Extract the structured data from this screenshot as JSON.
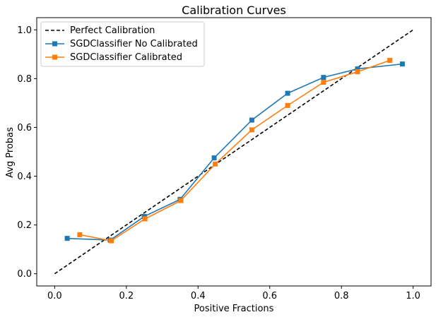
{
  "chart_data": {
    "type": "line",
    "title": "Calibration Curves",
    "xlabel": "Positive Fractions",
    "ylabel": "Avg Probas",
    "xlim": [
      -0.05,
      1.05
    ],
    "ylim": [
      -0.05,
      1.05
    ],
    "xticks": [
      0.0,
      0.2,
      0.4,
      0.6,
      0.8,
      1.0
    ],
    "xtick_labels": [
      "0.0",
      "0.2",
      "0.4",
      "0.6",
      "0.8",
      "1.0"
    ],
    "yticks": [
      0.0,
      0.2,
      0.4,
      0.6,
      0.8,
      1.0
    ],
    "ytick_labels": [
      "0.0",
      "0.2",
      "0.4",
      "0.6",
      "0.8",
      "1.0"
    ],
    "grid": false,
    "legend_position": "upper-left",
    "series": [
      {
        "name": "Perfect Calibration",
        "color": "#000000",
        "style": "dashed",
        "marker": "none",
        "x": [
          0.0,
          1.0
        ],
        "y": [
          0.0,
          1.0
        ]
      },
      {
        "name": "SGDClassifier No Calibrated",
        "color": "#1f77b4",
        "style": "solid",
        "marker": "square",
        "x": [
          0.035,
          0.155,
          0.25,
          0.35,
          0.445,
          0.55,
          0.65,
          0.75,
          0.845,
          0.97
        ],
        "y": [
          0.145,
          0.138,
          0.235,
          0.305,
          0.475,
          0.63,
          0.74,
          0.805,
          0.84,
          0.86
        ]
      },
      {
        "name": "SGDClassifier Calibrated",
        "color": "#ff7f0e",
        "style": "solid",
        "marker": "square",
        "x": [
          0.07,
          0.158,
          0.252,
          0.352,
          0.448,
          0.55,
          0.65,
          0.75,
          0.845,
          0.935
        ],
        "y": [
          0.16,
          0.135,
          0.225,
          0.3,
          0.45,
          0.59,
          0.69,
          0.785,
          0.828,
          0.875
        ]
      }
    ]
  }
}
